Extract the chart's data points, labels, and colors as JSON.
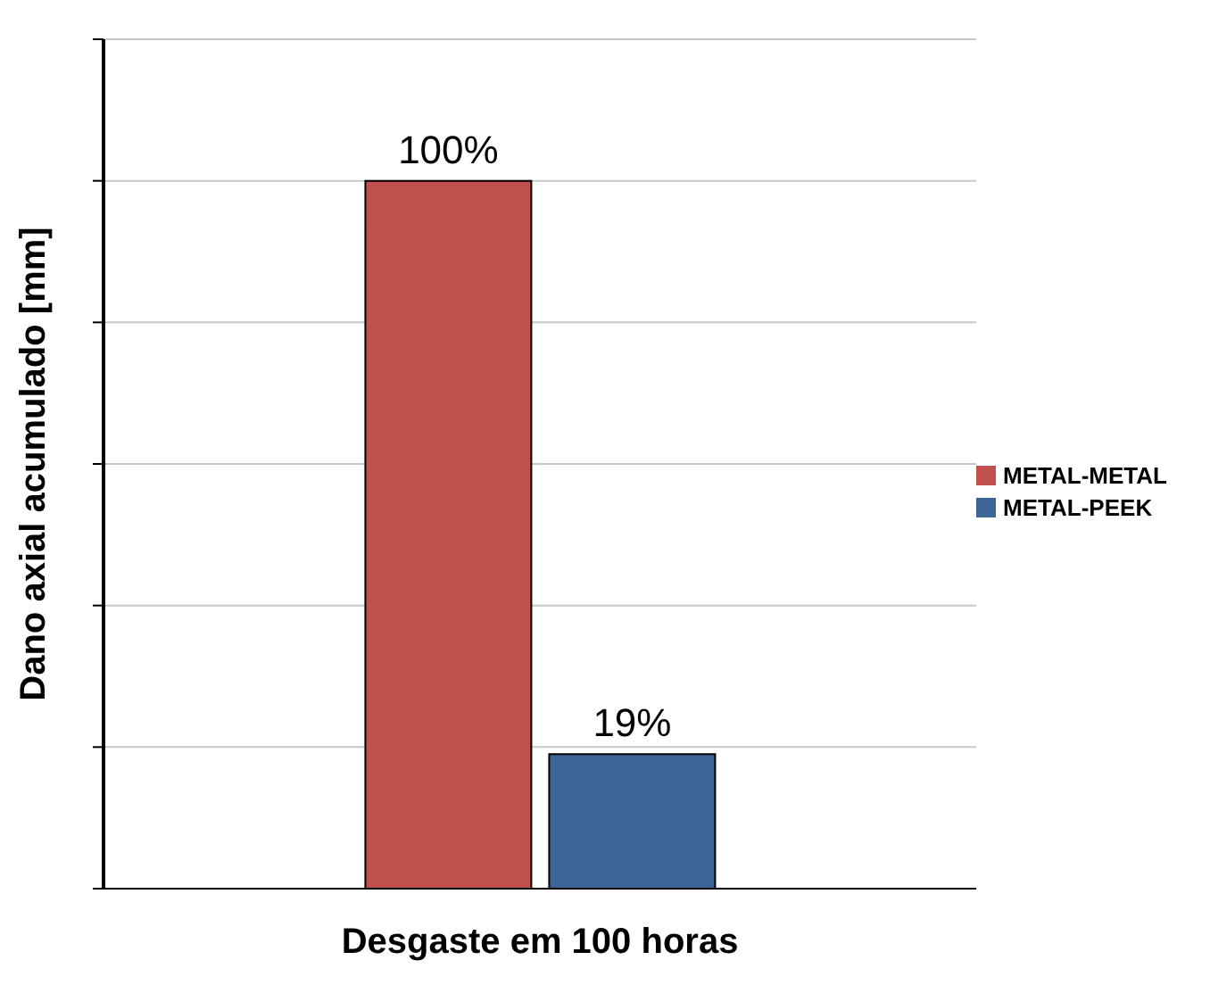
{
  "chart_data": {
    "type": "bar",
    "xlabel": "Desgaste em 100 horas",
    "ylabel": "Dano axial acumulado [mm]",
    "categories": [
      null
    ],
    "series": [
      {
        "name": "METAL-METAL",
        "color": "#c0504d",
        "values": [
          100
        ],
        "value_labels": [
          "100%"
        ]
      },
      {
        "name": "METAL-PEEK",
        "color": "#3c6496",
        "values": [
          19
        ],
        "value_labels": [
          "19%"
        ]
      }
    ],
    "ylim": [
      0,
      120
    ],
    "yticks": [
      {
        "value": 0,
        "label": null
      },
      {
        "value": 20,
        "label": null
      },
      {
        "value": 40,
        "label": null
      },
      {
        "value": 60,
        "label": null
      },
      {
        "value": 80,
        "label": null
      },
      {
        "value": 100,
        "label": null
      },
      {
        "value": 120,
        "label": null
      }
    ],
    "grid": "y",
    "legend": "right"
  }
}
